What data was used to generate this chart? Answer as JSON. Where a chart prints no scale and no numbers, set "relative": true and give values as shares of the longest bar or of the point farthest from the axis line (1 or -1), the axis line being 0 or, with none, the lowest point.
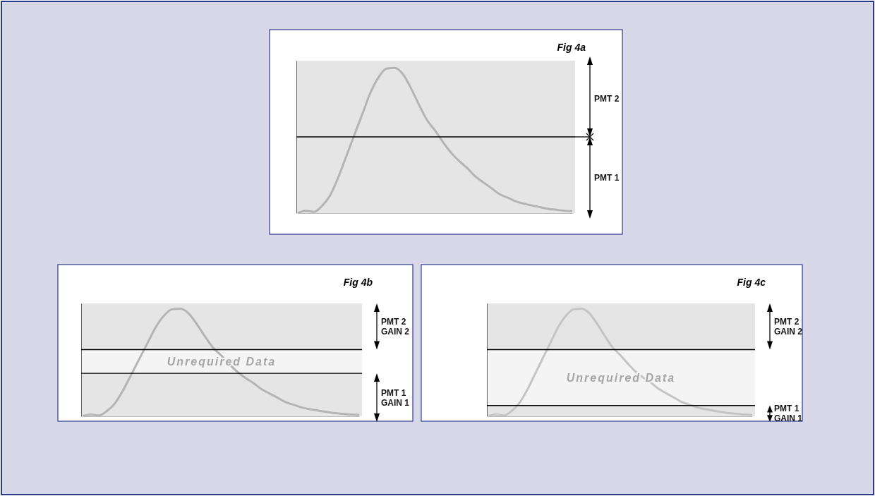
{
  "chart_data": [
    {
      "type": "line",
      "title": "Fig 4a",
      "relative": true,
      "categories": [
        null,
        null,
        null,
        null,
        null,
        null,
        null,
        null,
        null,
        null,
        null,
        null,
        null,
        null,
        null,
        null,
        null,
        null,
        null,
        null,
        null,
        null,
        null,
        null,
        null,
        null,
        null,
        null,
        null,
        null,
        null,
        null,
        null,
        null,
        null
      ],
      "series": [
        {
          "color": "#b4b4b4",
          "values": [
            0,
            0.016,
            0.008,
            0.049,
            0.122,
            0.244,
            0.39,
            0.537,
            0.683,
            0.829,
            0.935,
            0.995,
            1,
            0.959,
            0.862,
            0.748,
            0.642,
            0.569,
            0.488,
            0.415,
            0.358,
            0.309,
            0.252,
            0.211,
            0.171,
            0.13,
            0.106,
            0.081,
            0.065,
            0.052,
            0.041,
            0.029,
            0.023,
            0.016,
            0.013
          ]
        }
      ],
      "ref_lines": [
        {
          "axis": "y",
          "value": 0.525,
          "color": "#000000"
        }
      ],
      "annotations": [
        "PMT 2",
        "PMT 1"
      ]
    },
    {
      "type": "line",
      "title": "Fig 4b",
      "relative": true,
      "categories": [
        null,
        null,
        null,
        null,
        null,
        null,
        null,
        null,
        null,
        null,
        null,
        null,
        null,
        null,
        null,
        null,
        null,
        null,
        null,
        null,
        null,
        null,
        null,
        null,
        null,
        null,
        null,
        null,
        null,
        null,
        null,
        null,
        null,
        null,
        null
      ],
      "series": [
        {
          "color": "#b4b4b4",
          "values": [
            0,
            0.016,
            0.008,
            0.049,
            0.122,
            0.244,
            0.39,
            0.537,
            0.683,
            0.829,
            0.935,
            0.995,
            1,
            0.959,
            0.862,
            0.748,
            0.642,
            0.569,
            0.488,
            0.415,
            0.358,
            0.309,
            0.252,
            0.211,
            0.171,
            0.13,
            0.106,
            0.081,
            0.065,
            0.052,
            0.041,
            0.029,
            0.023,
            0.016,
            0.013
          ]
        }
      ],
      "ref_lines": [
        {
          "axis": "y",
          "value": 0.62,
          "color": "#000000"
        },
        {
          "axis": "y",
          "value": 0.4,
          "color": "#000000"
        }
      ],
      "bands": [
        {
          "axis": "y",
          "from": 0.4,
          "to": 0.62,
          "label": "Unrequired Data",
          "color": "#f4f4f4"
        }
      ],
      "annotations": [
        "PMT 2\nGAIN 2",
        "PMT 1\nGAIN 1"
      ]
    },
    {
      "type": "line",
      "title": "Fig 4c",
      "relative": true,
      "categories": [
        null,
        null,
        null,
        null,
        null,
        null,
        null,
        null,
        null,
        null,
        null,
        null,
        null,
        null,
        null,
        null,
        null,
        null,
        null,
        null,
        null,
        null,
        null,
        null,
        null,
        null,
        null,
        null,
        null,
        null,
        null,
        null,
        null,
        null,
        null
      ],
      "series": [
        {
          "color": "#c4c4c4",
          "values": [
            0,
            0.016,
            0.008,
            0.049,
            0.122,
            0.244,
            0.39,
            0.537,
            0.683,
            0.829,
            0.935,
            0.995,
            1,
            0.959,
            0.862,
            0.748,
            0.642,
            0.569,
            0.488,
            0.415,
            0.358,
            0.309,
            0.252,
            0.211,
            0.171,
            0.13,
            0.106,
            0.081,
            0.065,
            0.052,
            0.041,
            0.029,
            0.023,
            0.016,
            0.013
          ]
        }
      ],
      "ref_lines": [
        {
          "axis": "y",
          "value": 0.62,
          "color": "#000000"
        },
        {
          "axis": "y",
          "value": 0.1,
          "color": "#000000"
        }
      ],
      "bands": [
        {
          "axis": "y",
          "from": 0.1,
          "to": 0.62,
          "label": "Unrequired Data",
          "color": "#f4f4f4"
        }
      ],
      "annotations": [
        "PMT 2\nGAIN 2",
        "PMT 1\nGAIN 1"
      ]
    }
  ]
}
